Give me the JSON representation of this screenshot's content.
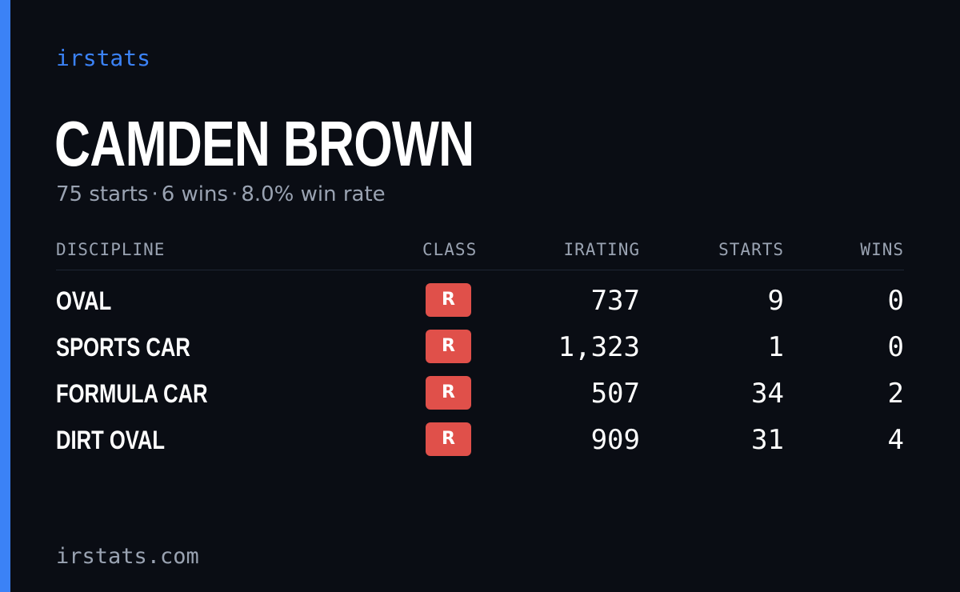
{
  "brand": "irstats",
  "driver": {
    "name": "CAMDEN BROWN",
    "starts_text": "75 starts",
    "wins_text": "6 wins",
    "winrate_text": "8.0% win rate",
    "separator": "·"
  },
  "table": {
    "headers": {
      "discipline": "DISCIPLINE",
      "class": "CLASS",
      "irating": "IRATING",
      "starts": "STARTS",
      "wins": "WINS"
    },
    "rows": [
      {
        "discipline": "OVAL",
        "class": "R",
        "irating": "737",
        "starts": "9",
        "wins": "0"
      },
      {
        "discipline": "SPORTS CAR",
        "class": "R",
        "irating": "1,323",
        "starts": "1",
        "wins": "0"
      },
      {
        "discipline": "FORMULA CAR",
        "class": "R",
        "irating": "507",
        "starts": "34",
        "wins": "2"
      },
      {
        "discipline": "DIRT OVAL",
        "class": "R",
        "irating": "909",
        "starts": "31",
        "wins": "4"
      }
    ]
  },
  "footer": "irstats.com",
  "colors": {
    "background": "#0a0d14",
    "accent": "#3b82f6",
    "class_r_badge": "#e0504a",
    "muted_text": "#9aa3b2"
  }
}
